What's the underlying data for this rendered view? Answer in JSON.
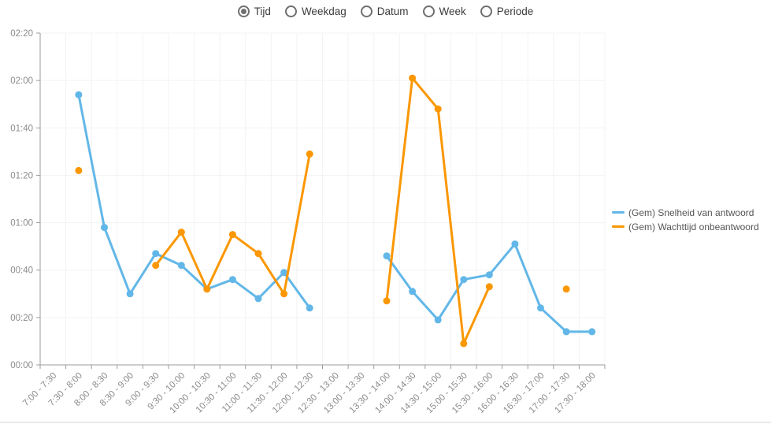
{
  "view_selector": {
    "options": [
      {
        "label": "Tijd",
        "selected": true
      },
      {
        "label": "Weekdag",
        "selected": false
      },
      {
        "label": "Datum",
        "selected": false
      },
      {
        "label": "Week",
        "selected": false
      },
      {
        "label": "Periode",
        "selected": false
      }
    ]
  },
  "legend": {
    "items": [
      {
        "label": "(Gem) Snelheid van antwoord",
        "color": "#62b7e8"
      },
      {
        "label": "(Gem) Wachttijd onbeantwoord",
        "color": "#fb9702"
      }
    ]
  },
  "chart_data": {
    "type": "line",
    "title": "",
    "xlabel": "",
    "ylabel": "",
    "grid": true,
    "legend_position": "right",
    "categories": [
      "7:00 - 7:30",
      "7:30 - 8:00",
      "8:00 - 8:30",
      "8:30 - 9:00",
      "9:00 - 9:30",
      "9:30 - 10:00",
      "10:00 - 10:30",
      "10:30 - 11:00",
      "11:00 - 11:30",
      "11:30 - 12:00",
      "12:00 - 12:30",
      "12:30 - 13:00",
      "13:00 - 13:30",
      "13:30 - 14:00",
      "14:00 - 14:30",
      "14:30 - 15:00",
      "15:00 - 15:30",
      "15:30 - 16:00",
      "16:00 - 16:30",
      "16:30 - 17:00",
      "17:00 - 17:30",
      "17:30 - 18:00"
    ],
    "y_ticks": [
      "00:00",
      "00:20",
      "00:40",
      "01:00",
      "01:20",
      "01:40",
      "02:00",
      "02:20"
    ],
    "ylim_minutes": [
      0,
      140
    ],
    "series": [
      {
        "name": "(Gem) Snelheid van antwoord",
        "color": "#62b7e8",
        "values_minutes": [
          null,
          114,
          58,
          30,
          47,
          42,
          32,
          36,
          28,
          39,
          24,
          null,
          null,
          46,
          31,
          19,
          36,
          38,
          51,
          24,
          14,
          14
        ],
        "values_hhmm": [
          null,
          "01:54",
          "00:58",
          "00:30",
          "00:47",
          "00:42",
          "00:32",
          "00:36",
          "00:28",
          "00:39",
          "00:24",
          null,
          null,
          "00:46",
          "00:31",
          "00:19",
          "00:36",
          "00:38",
          "00:51",
          "00:24",
          "00:14",
          "00:14"
        ]
      },
      {
        "name": "(Gem) Wachttijd onbeantwoord",
        "color": "#fb9702",
        "values_minutes": [
          null,
          82,
          null,
          null,
          42,
          56,
          32,
          55,
          47,
          30,
          89,
          null,
          null,
          27,
          121,
          108,
          9,
          33,
          null,
          null,
          32,
          null
        ],
        "values_hhmm": [
          null,
          "01:22",
          null,
          null,
          "00:42",
          "00:56",
          "00:32",
          "00:55",
          "00:47",
          "00:30",
          "01:29",
          null,
          null,
          "00:27",
          "02:01",
          "01:48",
          "00:09",
          "00:33",
          null,
          null,
          "00:32",
          null
        ]
      }
    ]
  },
  "style": {
    "axis_color": "#9b9b9b",
    "grid_color": "#f3f3f3",
    "axis_label_color": "#8b8b8b",
    "divider_color": "#e9e9e9"
  }
}
